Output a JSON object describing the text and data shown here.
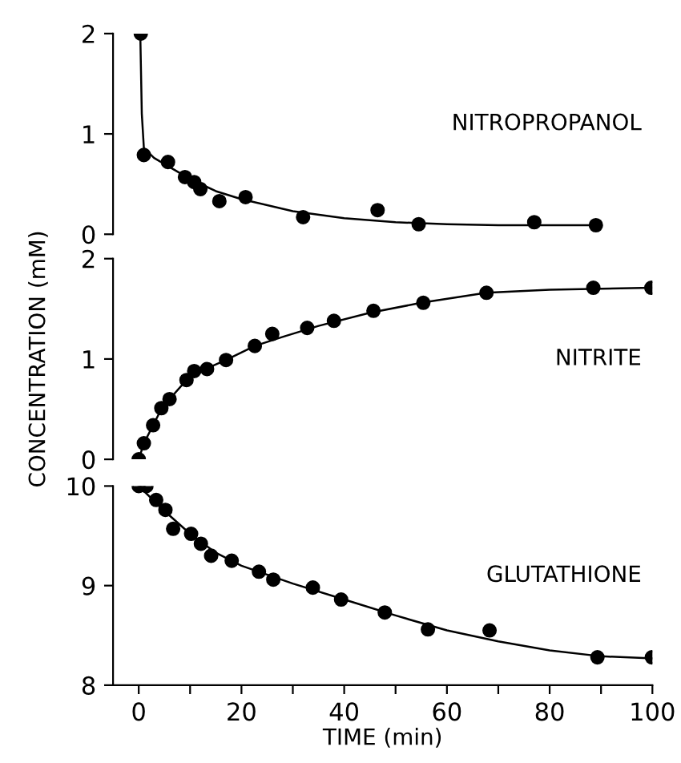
{
  "chart_data": [
    {
      "type": "scatter",
      "tick_labels": "y",
      "xlim": [
        -5,
        100
      ],
      "ylim": [
        0,
        2
      ],
      "yticks": [
        0,
        1,
        2
      ],
      "series": [
        {
          "name": "NITROPROPANOL",
          "color": "#000000",
          "marker": "circle",
          "x": [
            0.4,
            1,
            5.7,
            9,
            10.8,
            12,
            15.7,
            20.8,
            32,
            46.5,
            54.5,
            77,
            89
          ],
          "values": [
            2.0,
            0.79,
            0.72,
            0.57,
            0.52,
            0.45,
            0.33,
            0.37,
            0.17,
            0.24,
            0.1,
            0.12,
            0.09
          ]
        },
        {
          "type": "line",
          "color": "#000000",
          "x": [
            0.3,
            0.6,
            1,
            3,
            5,
            10,
            15,
            20,
            30,
            40,
            50,
            60,
            70,
            80,
            90
          ],
          "values": [
            2.0,
            1.2,
            0.86,
            0.76,
            0.7,
            0.55,
            0.43,
            0.35,
            0.23,
            0.16,
            0.12,
            0.1,
            0.09,
            0.09,
            0.09
          ]
        }
      ]
    },
    {
      "type": "scatter",
      "tick_labels": "y",
      "xlim": [
        -5,
        100
      ],
      "ylim": [
        0,
        2
      ],
      "yticks": [
        0,
        1,
        2
      ],
      "ylabel": "CONCENTRATION (mM)",
      "series": [
        {
          "name": "NITRITE",
          "color": "#000000",
          "marker": "circle",
          "x": [
            0,
            1,
            2.8,
            4.4,
            6,
            9.3,
            10.8,
            13.3,
            17,
            22.6,
            26,
            32.8,
            38,
            45.7,
            55.4,
            67.7,
            88.5,
            99.8
          ],
          "values": [
            0,
            0.16,
            0.34,
            0.51,
            0.6,
            0.79,
            0.88,
            0.9,
            0.99,
            1.13,
            1.25,
            1.31,
            1.38,
            1.48,
            1.56,
            1.66,
            1.71,
            1.71
          ]
        },
        {
          "type": "line",
          "color": "#000000",
          "x": [
            0,
            1,
            2.8,
            4.4,
            6,
            9.3,
            13,
            17,
            22.6,
            28,
            35,
            45,
            55,
            67.7,
            80,
            99.8
          ],
          "values": [
            0,
            0.16,
            0.34,
            0.5,
            0.6,
            0.79,
            0.9,
            0.99,
            1.13,
            1.22,
            1.33,
            1.46,
            1.56,
            1.66,
            1.69,
            1.71
          ]
        }
      ]
    },
    {
      "type": "scatter",
      "xlim": [
        -5,
        100
      ],
      "ylim": [
        8,
        10
      ],
      "yticks": [
        8,
        9,
        10
      ],
      "xticks": [
        0,
        {
          "value": 10,
          "label": null
        },
        20,
        {
          "value": 30,
          "label": null
        },
        40,
        {
          "value": 50,
          "label": null
        },
        60,
        {
          "value": 70,
          "label": null
        },
        80,
        {
          "value": 90,
          "label": null
        },
        100
      ],
      "xlabel": "TIME (min)",
      "series": [
        {
          "name": "GLUTATHIONE",
          "color": "#000000",
          "marker": "circle",
          "x": [
            0,
            1.5,
            3.4,
            5.2,
            6.7,
            10.2,
            12.1,
            14.1,
            18.1,
            23.4,
            26.2,
            33.9,
            39.4,
            47.9,
            56.3,
            68.3,
            89.3,
            99.9
          ],
          "values": [
            10.0,
            10.0,
            9.86,
            9.76,
            9.57,
            9.52,
            9.42,
            9.3,
            9.25,
            9.14,
            9.06,
            8.98,
            8.86,
            8.73,
            8.56,
            8.55,
            8.28,
            8.28
          ]
        },
        {
          "type": "line",
          "color": "#000000",
          "x": [
            0,
            5,
            10,
            15,
            20,
            30,
            40,
            50,
            60,
            70,
            80,
            90,
            100
          ],
          "values": [
            10.0,
            9.75,
            9.52,
            9.33,
            9.2,
            9.02,
            8.86,
            8.7,
            8.55,
            8.44,
            8.35,
            8.29,
            8.27
          ]
        }
      ]
    }
  ]
}
